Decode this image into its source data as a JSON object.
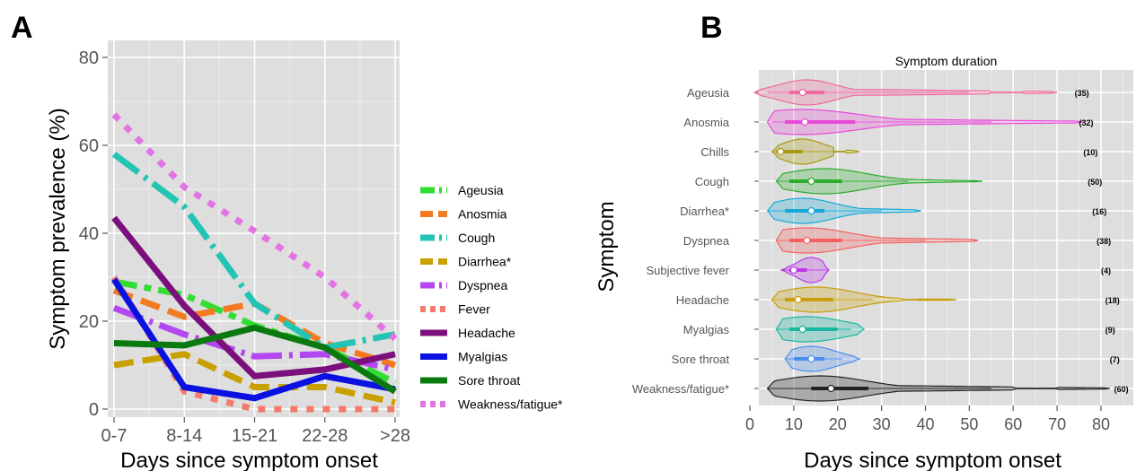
{
  "panels": {
    "a": "A",
    "b": "B"
  },
  "chart_data": [
    {
      "type": "line",
      "categories": [
        "0-7",
        "8-14",
        "15-21",
        "22-28",
        ">28"
      ],
      "ylabel": "Symptom prevalence (%)",
      "xlabel": "Days since symptom onset",
      "ylim": [
        0,
        80
      ],
      "yticks": [
        0,
        20,
        40,
        60,
        80
      ],
      "grid": true,
      "legend_position": "right",
      "series": [
        {
          "name": "Ageusia",
          "color": "#33dd33",
          "dash": "long-short",
          "values": [
            29,
            26,
            19,
            14,
            6
          ]
        },
        {
          "name": "Anosmia",
          "color": "#f47a20",
          "dash": "dashed",
          "values": [
            27,
            21,
            24,
            15,
            10
          ]
        },
        {
          "name": "Cough",
          "color": "#22c4b4",
          "dash": "dash-dot",
          "values": [
            58,
            46,
            24,
            14,
            17
          ]
        },
        {
          "name": "Diarrhea*",
          "color": "#c8a000",
          "dash": "dashed",
          "values": [
            10,
            12.5,
            5,
            5,
            1.5
          ]
        },
        {
          "name": "Dyspnea",
          "color": "#b347f0",
          "dash": "dash-dot",
          "values": [
            23,
            17,
            12,
            12.5,
            9
          ]
        },
        {
          "name": "Fever",
          "color": "#f47b6b",
          "dash": "dotted",
          "values": [
            30,
            4,
            0,
            0,
            0
          ]
        },
        {
          "name": "Headache",
          "color": "#7b0f7b",
          "dash": "solid",
          "values": [
            43.5,
            23.5,
            7.5,
            9,
            12.5
          ]
        },
        {
          "name": "Myalgias",
          "color": "#0b12e0",
          "dash": "solid",
          "values": [
            29.5,
            5,
            2.5,
            7.5,
            4.5
          ]
        },
        {
          "name": "Sore throat",
          "color": "#0a7a10",
          "dash": "solid",
          "values": [
            15,
            14.5,
            18.5,
            14,
            4
          ]
        },
        {
          "name": "Weakness/fatigue*",
          "color": "#e373e3",
          "dash": "dotted",
          "values": [
            67,
            50.5,
            40.5,
            30,
            16
          ]
        }
      ]
    },
    {
      "type": "violin",
      "title": "Symptom duration",
      "xlabel": "Days since symptom onset",
      "ylabel": "Symptom",
      "xlim": [
        0,
        85
      ],
      "xticks": [
        0,
        10,
        20,
        30,
        40,
        50,
        60,
        70,
        80
      ],
      "grid": true,
      "rows": [
        {
          "name": "Ageusia",
          "count": "(35)",
          "color": "#f06a9e",
          "min": 1,
          "max": 70,
          "q1": 9,
          "median": 12,
          "q3": 17,
          "wlo": 4,
          "whi": 50,
          "peak": 13,
          "gap": [
            55,
            62
          ]
        },
        {
          "name": "Anosmia",
          "count": "(32)",
          "color": "#e84ad8",
          "min": 4,
          "max": 76,
          "q1": 8,
          "median": 12.5,
          "q3": 24,
          "wlo": 5,
          "whi": 55,
          "peak": 12,
          "gap": null
        },
        {
          "name": "Chills",
          "count": "(10)",
          "color": "#a89a12",
          "min": 5,
          "max": 25,
          "q1": 6,
          "median": 7,
          "q3": 12,
          "wlo": 5,
          "whi": 20,
          "peak": 12,
          "gap": [
            19,
            22
          ]
        },
        {
          "name": "Cough",
          "count": "(50)",
          "color": "#2eac2e",
          "min": 6,
          "max": 53,
          "q1": 9,
          "median": 14,
          "q3": 21,
          "wlo": 6,
          "whi": 36,
          "peak": 17,
          "gap": null
        },
        {
          "name": "Diarrhea*",
          "count": "(16)",
          "color": "#16a8d8",
          "min": 4,
          "max": 39,
          "q1": 8,
          "median": 14,
          "q3": 17,
          "wlo": 4,
          "whi": 30,
          "peak": 12,
          "gap": null
        },
        {
          "name": "Dyspnea",
          "count": "(38)",
          "color": "#f46060",
          "min": 6,
          "max": 52,
          "q1": 9,
          "median": 13,
          "q3": 21,
          "wlo": 6,
          "whi": 40,
          "peak": 13,
          "gap": null
        },
        {
          "name": "Subjective fever",
          "count": "(4)",
          "color": "#b93ae6",
          "min": 7,
          "max": 18,
          "q1": 9,
          "median": 10,
          "q3": 13,
          "wlo": 7,
          "whi": 18,
          "peak": 14,
          "gap": null
        },
        {
          "name": "Headache",
          "count": "(18)",
          "color": "#c89f0a",
          "min": 5,
          "max": 47,
          "q1": 8,
          "median": 11,
          "q3": 19,
          "wlo": 5,
          "whi": 28,
          "peak": 15,
          "gap": [
            35,
            38
          ]
        },
        {
          "name": "Myalgias",
          "count": "(9)",
          "color": "#17b7a0",
          "min": 6,
          "max": 26,
          "q1": 9,
          "median": 12,
          "q3": 20,
          "wlo": 6,
          "whi": 23,
          "peak": 13,
          "gap": null
        },
        {
          "name": "Sore throat",
          "count": "(7)",
          "color": "#4a8ef0",
          "min": 8,
          "max": 25,
          "q1": 10,
          "median": 14,
          "q3": 17,
          "wlo": 8,
          "whi": 21,
          "peak": 14,
          "gap": null
        },
        {
          "name": "Weakness/fatigue*",
          "count": "(60)",
          "color": "#222222",
          "min": 4,
          "max": 82,
          "q1": 14,
          "median": 18.5,
          "q3": 27,
          "wlo": 4,
          "whi": 55,
          "peak": 16,
          "gap": [
            60,
            70
          ]
        }
      ]
    }
  ]
}
